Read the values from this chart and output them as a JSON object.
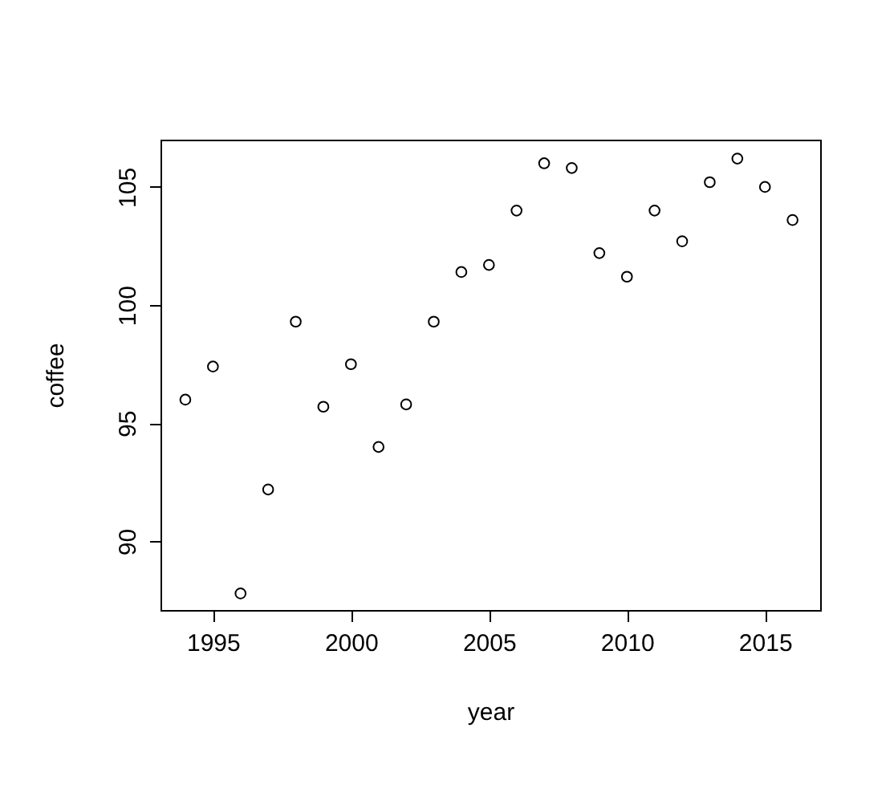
{
  "chart_data": {
    "type": "scatter",
    "xlabel": "year",
    "ylabel": "coffee",
    "x": [
      1994,
      1995,
      1996,
      1997,
      1998,
      1999,
      2000,
      2001,
      2002,
      2003,
      2004,
      2005,
      2006,
      2007,
      2008,
      2009,
      2010,
      2011,
      2012,
      2013,
      2014,
      2015,
      2016
    ],
    "values": [
      96.0,
      97.4,
      87.8,
      92.2,
      99.3,
      95.7,
      97.5,
      94.0,
      95.8,
      99.3,
      101.4,
      101.7,
      104.0,
      106.0,
      105.8,
      102.2,
      101.2,
      104.0,
      102.7,
      105.2,
      106.2,
      105.0,
      103.6
    ],
    "color": "#000000",
    "marker": "circle",
    "grid": false,
    "xlim": [
      1993.1,
      2017.0
    ],
    "ylim": [
      87.1,
      107.0
    ],
    "xticks": [
      1995,
      2000,
      2005,
      2010,
      2015
    ],
    "yticks": [
      90,
      95,
      100,
      105
    ]
  }
}
